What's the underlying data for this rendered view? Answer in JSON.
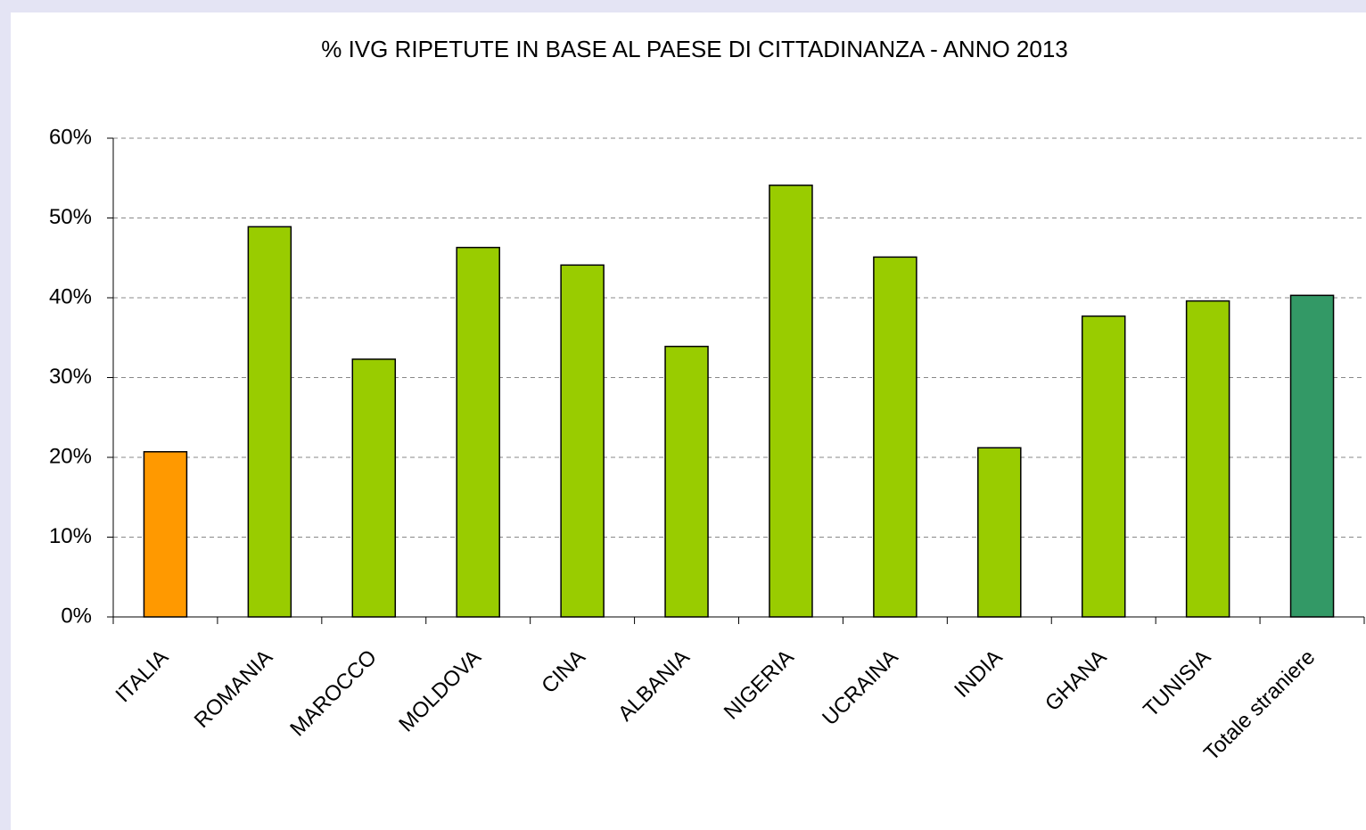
{
  "chart_data": {
    "type": "bar",
    "title": "% IVG RIPETUTE IN BASE AL PAESE DI CITTADINANZA - ANNO 2013",
    "categories": [
      "ITALIA",
      "ROMANIA",
      "MAROCCO",
      "MOLDOVA",
      "CINA",
      "ALBANIA",
      "NIGERIA",
      "UCRAINA",
      "INDIA",
      "GHANA",
      "TUNISIA",
      "Totale straniere"
    ],
    "values": [
      20.7,
      48.9,
      32.3,
      46.3,
      44.1,
      33.9,
      54.1,
      45.1,
      21.2,
      37.7,
      39.6,
      40.3
    ],
    "colors": [
      "#ff9900",
      "#99cc00",
      "#99cc00",
      "#99cc00",
      "#99cc00",
      "#99cc00",
      "#99cc00",
      "#99cc00",
      "#99cc00",
      "#99cc00",
      "#99cc00",
      "#339966"
    ],
    "ylim": [
      0,
      60
    ],
    "yticks": [
      {
        "value": 0,
        "label": "0%"
      },
      {
        "value": 10,
        "label": "10%"
      },
      {
        "value": 20,
        "label": "20%"
      },
      {
        "value": 30,
        "label": "30%"
      },
      {
        "value": 40,
        "label": "40%"
      },
      {
        "value": 50,
        "label": "50%"
      },
      {
        "value": 60,
        "label": "60%"
      }
    ],
    "grid": true
  }
}
